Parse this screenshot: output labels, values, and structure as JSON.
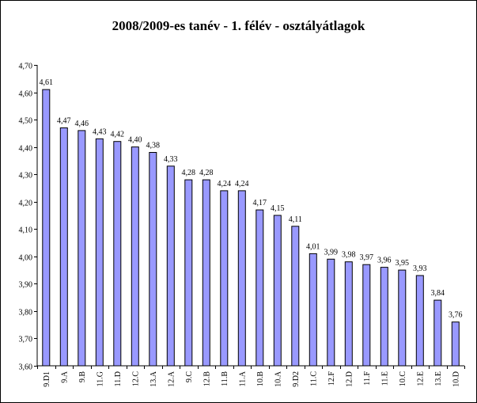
{
  "colors": {
    "bar_fill": "#9999ff",
    "bar_stroke": "#000000",
    "axis": "#000000",
    "background": "#ffffff"
  },
  "chart_data": {
    "type": "bar",
    "title": "2008/2009-es tanév - 1. félév - osztályátlagok",
    "xlabel": "",
    "ylabel": "",
    "ylim": [
      3.6,
      4.7
    ],
    "y_ticks": [
      "3,60",
      "3,70",
      "3,80",
      "3,90",
      "4,00",
      "4,10",
      "4,20",
      "4,30",
      "4,40",
      "4,50",
      "4,60",
      "4,70"
    ],
    "grid": false,
    "legend": "none",
    "categories": [
      "9.D1",
      "9.A",
      "9.B",
      "11.G",
      "11.D",
      "12.C",
      "13.A",
      "12.A",
      "9.C",
      "12.B",
      "11.B",
      "11.A",
      "10.B",
      "10.A",
      "9.D2",
      "11.C",
      "12.F",
      "12.D",
      "11.F",
      "11.E",
      "10.C",
      "12.E",
      "13.E",
      "10.D"
    ],
    "values": [
      4.61,
      4.47,
      4.46,
      4.43,
      4.42,
      4.4,
      4.38,
      4.33,
      4.28,
      4.28,
      4.24,
      4.24,
      4.17,
      4.15,
      4.11,
      4.01,
      3.99,
      3.98,
      3.97,
      3.96,
      3.95,
      3.93,
      3.84,
      3.76
    ],
    "value_labels": [
      "4,61",
      "4,47",
      "4,46",
      "4,43",
      "4,42",
      "4,40",
      "4,38",
      "4,33",
      "4,28",
      "4,28",
      "4,24",
      "4,24",
      "4,17",
      "4,15",
      "4,11",
      "4,01",
      "3,99",
      "3,98",
      "3,97",
      "3,96",
      "3,95",
      "3,93",
      "3,84",
      "3,76"
    ]
  }
}
